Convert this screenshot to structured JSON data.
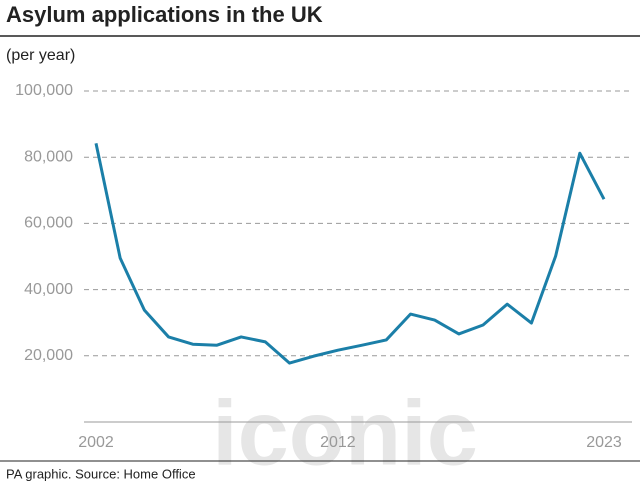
{
  "chart_data": {
    "type": "line",
    "title": "Asylum applications in the UK",
    "subtitle": "(per year)",
    "source": "PA graphic. Source: Home Office",
    "watermark": "iconic",
    "x": [
      2002,
      2003,
      2004,
      2005,
      2006,
      2007,
      2008,
      2009,
      2010,
      2011,
      2012,
      2013,
      2014,
      2015,
      2016,
      2017,
      2018,
      2019,
      2020,
      2021,
      2022,
      2023
    ],
    "series": [
      {
        "name": "Asylum applications",
        "color": "#1b7fa8",
        "values": [
          84200,
          49500,
          33800,
          25700,
          23500,
          23200,
          25700,
          24200,
          17800,
          19900,
          21700,
          23200,
          24800,
          32600,
          30800,
          26600,
          29300,
          35600,
          29900,
          50100,
          81200,
          67300
        ]
      }
    ],
    "xlim": [
      2002,
      2023
    ],
    "xticks": [
      2002,
      2012,
      2023
    ],
    "ylim": [
      0,
      100000
    ],
    "yticks": [
      {
        "value": 20000,
        "label": "20,000"
      },
      {
        "value": 40000,
        "label": "40,000"
      },
      {
        "value": 60000,
        "label": "60,000"
      },
      {
        "value": 80000,
        "label": "80,000"
      },
      {
        "value": 100000,
        "label": "100,000"
      }
    ],
    "grid": true
  }
}
